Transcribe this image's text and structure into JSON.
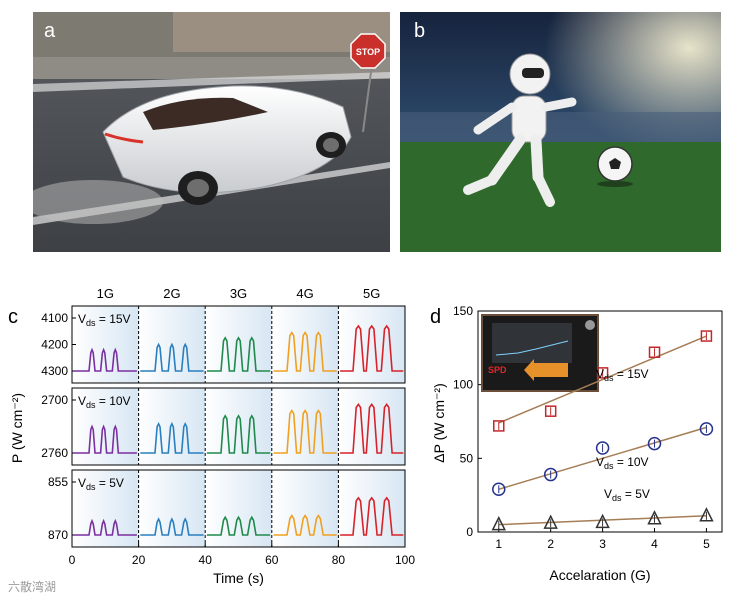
{
  "panels": {
    "a_label": "a",
    "b_label": "b",
    "c_label": "c",
    "d_label": "d",
    "stop_sign": "STOP"
  },
  "watermark": "六散湾湖",
  "chart_data": [
    {
      "type": "line",
      "panel": "c",
      "xlabel": "Time (s)",
      "ylabel": "P (W cm⁻²)",
      "xlim": [
        0,
        100
      ],
      "xticks": [
        0,
        20,
        40,
        60,
        80,
        100
      ],
      "segment_labels": [
        "1G",
        "2G",
        "3G",
        "4G",
        "5G"
      ],
      "segment_boundaries": [
        20,
        40,
        60,
        80
      ],
      "segment_colors": [
        "#7b2fa0",
        "#2a7fbf",
        "#1f8a4c",
        "#f0a020",
        "#d8222a"
      ],
      "pulse_times": [
        [
          6,
          9.5,
          13
        ],
        [
          26,
          30,
          34
        ],
        [
          46,
          50,
          54
        ],
        [
          66,
          70,
          74
        ],
        [
          86,
          90,
          94.5
        ]
      ],
      "subplots": [
        {
          "vds_label": "V",
          "vds_sub": "ds",
          "vds_value": " = 15V",
          "yticks": [
            "4100",
            "4200",
            "4300"
          ],
          "baseline": 4300,
          "peak": [
            4220,
            4200,
            4175,
            4155,
            4130
          ]
        },
        {
          "vds_label": "V",
          "vds_sub": "ds",
          "vds_value": " = 10V",
          "yticks": [
            "2700",
            "2760"
          ],
          "baseline": 2760,
          "peak": [
            2730,
            2727,
            2718,
            2712,
            2705
          ]
        },
        {
          "vds_label": "V",
          "vds_sub": "ds",
          "vds_value": " = 5V",
          "yticks": [
            "855",
            "870"
          ],
          "baseline": 870,
          "peak": [
            866,
            865.5,
            865,
            864.5,
            859.5
          ]
        }
      ]
    },
    {
      "type": "scatter",
      "panel": "d",
      "xlabel": "Accelaration (G)",
      "ylabel": "ΔP (W cm⁻²)",
      "xlim": [
        0.6,
        5.3
      ],
      "ylim": [
        0,
        150
      ],
      "xticks": [
        1,
        2,
        3,
        4,
        5
      ],
      "yticks": [
        0,
        50,
        100,
        150
      ],
      "inset_label": "SPD",
      "series": [
        {
          "name": "Vds = 15V",
          "label_main": "V",
          "label_sub": "ds",
          "label_rest": " = 15V",
          "marker": "square",
          "color": "#c0282c",
          "x": [
            1,
            2,
            3,
            4,
            5
          ],
          "y": [
            72,
            82,
            108,
            122,
            133
          ],
          "fit": [
            [
              1,
              74
            ],
            [
              5,
              133
            ]
          ]
        },
        {
          "name": "Vds = 10V",
          "label_main": "V",
          "label_sub": "ds",
          "label_rest": " = 10V",
          "marker": "circle",
          "color": "#26328e",
          "x": [
            1,
            2,
            3,
            4,
            5
          ],
          "y": [
            29,
            39,
            57,
            60,
            70
          ],
          "fit": [
            [
              1,
              29
            ],
            [
              5,
              71
            ]
          ]
        },
        {
          "name": "Vds = 5V",
          "label_main": "V",
          "label_sub": "ds",
          "label_rest": " = 5V",
          "marker": "triangle",
          "color": "#333333",
          "x": [
            1,
            2,
            3,
            4,
            5
          ],
          "y": [
            5,
            6,
            6.5,
            9,
            11
          ],
          "fit": [
            [
              1,
              5
            ],
            [
              5,
              11
            ]
          ]
        }
      ]
    }
  ]
}
